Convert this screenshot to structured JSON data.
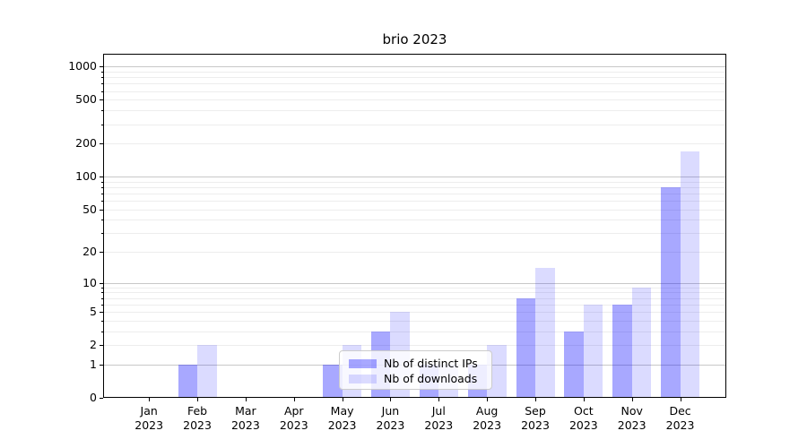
{
  "chart_data": {
    "type": "bar",
    "title": "brio 2023",
    "months": [
      "Jan",
      "Feb",
      "Mar",
      "Apr",
      "May",
      "Jun",
      "Jul",
      "Aug",
      "Sep",
      "Oct",
      "Nov",
      "Dec"
    ],
    "year_label": "2023",
    "series": [
      {
        "name": "Nb of distinct IPs",
        "color": "rgba(0,0,255,0.34)",
        "values": [
          0,
          1,
          0,
          0,
          1,
          3,
          1,
          1,
          7,
          3,
          6,
          80
        ]
      },
      {
        "name": "Nb of downloads",
        "color": "rgba(0,0,255,0.14)",
        "values": [
          0,
          2,
          0,
          0,
          2,
          5,
          1,
          2,
          14,
          6,
          9,
          170
        ]
      }
    ],
    "y_axis": {
      "scale": "log1p",
      "ticks": [
        0,
        1,
        2,
        5,
        10,
        20,
        50,
        100,
        200,
        500,
        1000
      ],
      "major_gridlines": [
        1,
        10,
        100,
        1000
      ],
      "minor_gridlines": [
        2,
        3,
        4,
        5,
        6,
        7,
        8,
        9,
        20,
        30,
        40,
        50,
        60,
        70,
        80,
        90,
        200,
        300,
        400,
        500,
        600,
        700,
        800,
        900
      ],
      "ylim_top": 1300
    },
    "legend": {
      "position": "lower-center"
    },
    "grid": true,
    "colors": {
      "major_grid": "#c8c8c8",
      "minor_grid": "#ededed",
      "spine": "#000000",
      "legend_border": "#cccccc"
    }
  }
}
